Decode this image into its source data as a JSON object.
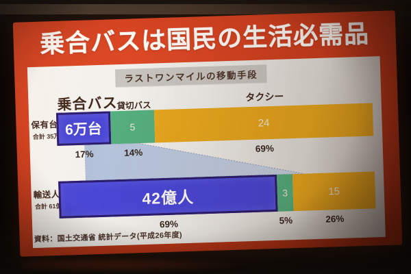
{
  "slide": {
    "title": "乗合バスは国民の生活必需品",
    "subtitle": "ラストワンマイルの移動手段",
    "source": "資料：国土交通省 統計データ(平成26年度)"
  },
  "chart_data": {
    "type": "bar",
    "variant": "horizontal_stacked_100pct",
    "title": "乗合バスは国民の生活必需品",
    "subtitle": "ラストワンマイルの移動手段",
    "categories": [
      "乗合バス",
      "貸切バス",
      "タクシー"
    ],
    "colors": {
      "norikai_blue": "#4a47d6",
      "kashikiri_green": "#56af7e",
      "taxi_yellow": "#e8a81e",
      "slide_red": "#d0401f",
      "funnel_blue": "#b5c3dc"
    },
    "rows": [
      {
        "label": "保有台数",
        "total_label": "合計 35万台",
        "segments": [
          {
            "category": "乗合バス",
            "value_label": "6万台",
            "pct": 17,
            "pct_label": "17%"
          },
          {
            "category": "貸切バス",
            "value_label": "5",
            "pct": 14,
            "pct_label": "14%"
          },
          {
            "category": "タクシー",
            "value_label": "24",
            "pct": 69,
            "pct_label": "69%"
          }
        ]
      },
      {
        "label": "輸送人員",
        "total_label": "合計 61億人",
        "segments": [
          {
            "category": "乗合バス",
            "value_label": "42億人",
            "pct": 69,
            "pct_label": "69%"
          },
          {
            "category": "貸切バス",
            "value_label": "3",
            "pct": 5,
            "pct_label": "5%"
          },
          {
            "category": "タクシー",
            "value_label": "15",
            "pct": 26,
            "pct_label": "26%"
          }
        ]
      }
    ],
    "funnel_link": {
      "category": "乗合バス",
      "row_from": 0,
      "row_to": 1,
      "from_pct": 17,
      "to_pct": 69
    },
    "legend_position": "above-bars",
    "source": "資料：国土交通省 統計データ(平成26年度)"
  }
}
